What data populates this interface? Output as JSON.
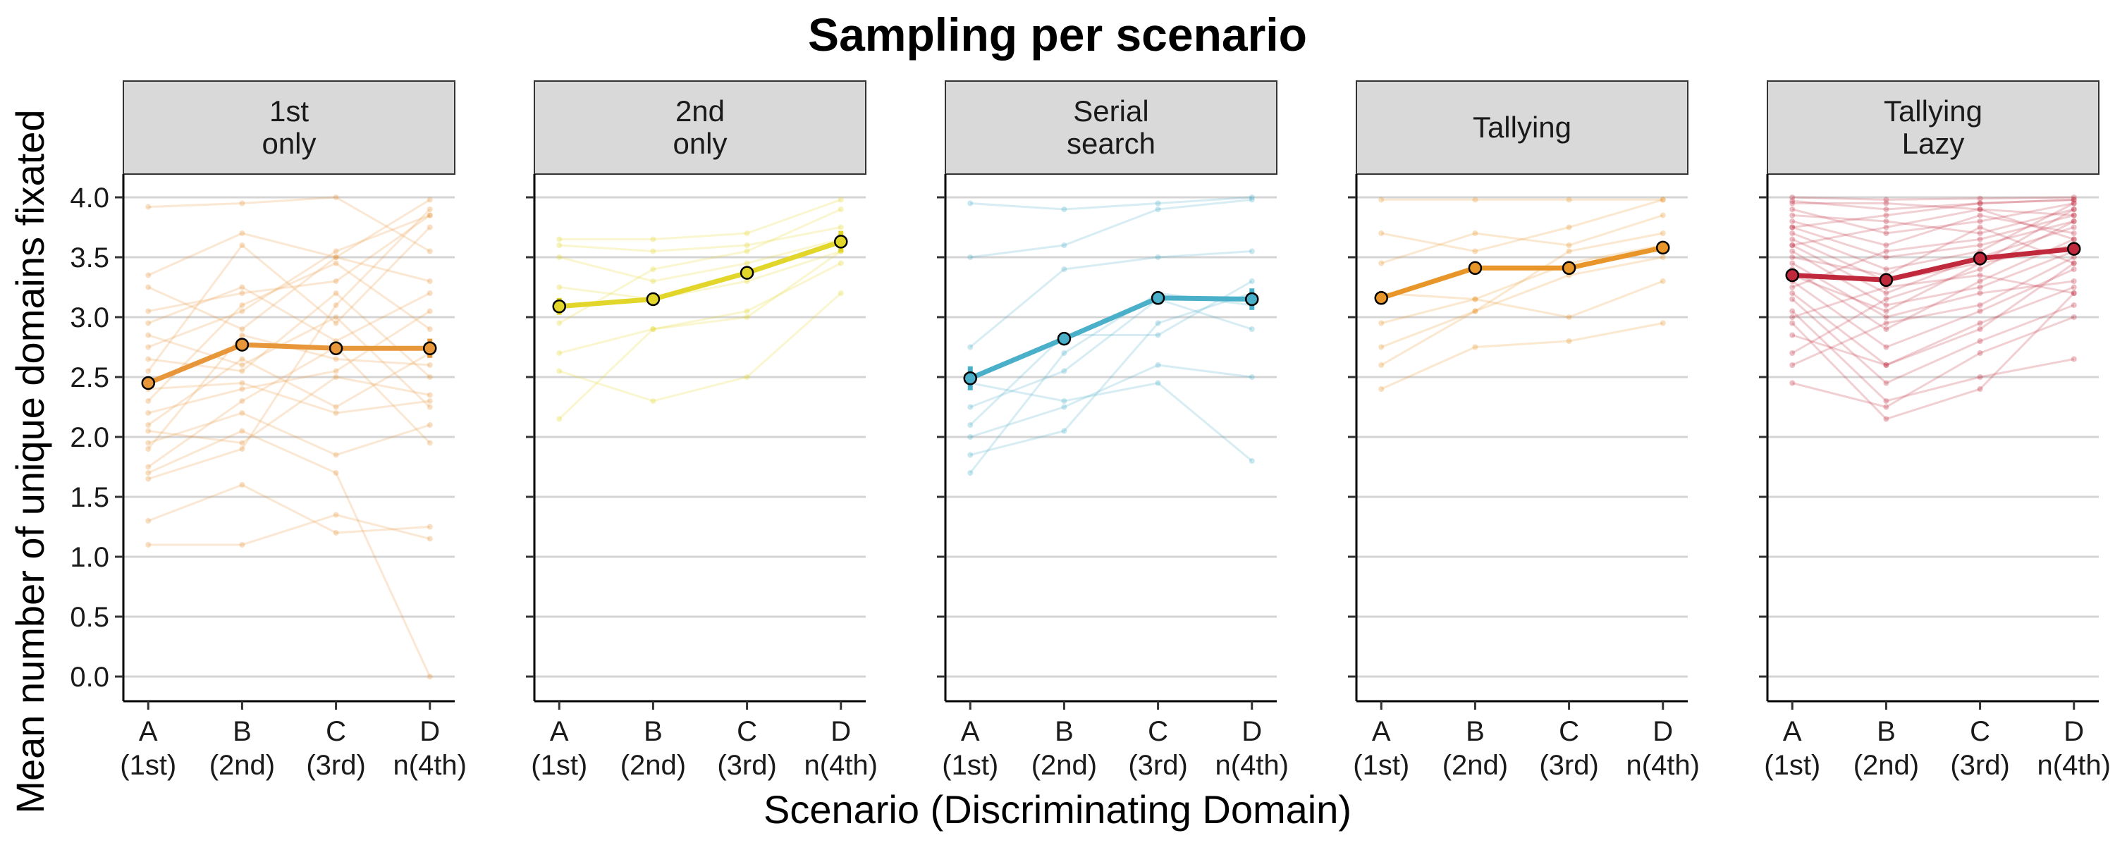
{
  "chart_data": {
    "type": "line",
    "title": "Sampling per scenario",
    "xlabel": "Scenario (Discriminating Domain)",
    "ylabel": "Mean number of unique domains fixated",
    "ylim": [
      0,
      4
    ],
    "y_ticks": [
      "0.0",
      "0.5",
      "1.0",
      "1.5",
      "2.0",
      "2.5",
      "3.0",
      "3.5",
      "4.0"
    ],
    "categories": [
      {
        "line1": "A",
        "line2": "(1st)"
      },
      {
        "line1": "B",
        "line2": "(2nd)"
      },
      {
        "line1": "C",
        "line2": "(3rd)"
      },
      {
        "line1": "D",
        "line2": "n(4th)"
      }
    ],
    "grid": "horizontal",
    "panels": [
      {
        "strip": [
          "1st",
          "only"
        ],
        "color": "#E8963A",
        "mean": [
          2.45,
          2.77,
          2.74,
          2.74
        ],
        "error": [
          0.04,
          0.03,
          0.03,
          0.08
        ],
        "individuals": [
          [
            3.92,
            3.95,
            4.0,
            3.55
          ],
          [
            3.35,
            3.7,
            3.5,
            3.98
          ],
          [
            3.05,
            3.2,
            3.3,
            3.85
          ],
          [
            2.95,
            3.25,
            2.8,
            3.2
          ],
          [
            2.75,
            3.05,
            3.55,
            3.85
          ],
          [
            2.65,
            2.55,
            3.2,
            2.5
          ],
          [
            2.55,
            3.6,
            2.95,
            3.75
          ],
          [
            2.4,
            2.45,
            2.2,
            2.3
          ],
          [
            2.3,
            3.1,
            3.45,
            2.9
          ],
          [
            2.2,
            2.4,
            2.55,
            3.05
          ],
          [
            2.1,
            2.65,
            2.25,
            2.7
          ],
          [
            2.05,
            1.95,
            2.5,
            2.35
          ],
          [
            1.95,
            2.2,
            1.85,
            2.1
          ],
          [
            1.9,
            2.85,
            2.65,
            2.6
          ],
          [
            1.75,
            2.3,
            2.75,
            1.95
          ],
          [
            1.7,
            2.05,
            1.7,
            0.0
          ],
          [
            1.65,
            1.9,
            3.1,
            3.9
          ],
          [
            1.3,
            1.6,
            1.2,
            1.25
          ],
          [
            1.1,
            1.1,
            1.35,
            1.15
          ],
          [
            3.25,
            2.9,
            3.5,
            3.3
          ],
          [
            2.85,
            2.6,
            3.0,
            2.25
          ]
        ]
      },
      {
        "strip": [
          "2nd",
          "only"
        ],
        "color": "#E2D62A",
        "mean": [
          3.09,
          3.15,
          3.37,
          3.63
        ],
        "error": [
          0.07,
          0.05,
          0.05,
          0.09
        ],
        "individuals": [
          [
            3.65,
            3.65,
            3.7,
            3.98
          ],
          [
            3.6,
            3.55,
            3.6,
            3.75
          ],
          [
            3.5,
            3.3,
            3.45,
            3.65
          ],
          [
            3.25,
            3.15,
            3.3,
            3.55
          ],
          [
            2.95,
            3.4,
            3.55,
            3.9
          ],
          [
            2.7,
            2.9,
            3.05,
            3.45
          ],
          [
            2.55,
            2.3,
            2.5,
            3.2
          ],
          [
            2.15,
            2.9,
            3.0,
            3.55
          ]
        ]
      },
      {
        "strip": [
          "Serial",
          "search"
        ],
        "color": "#4AAFC9",
        "mean": [
          2.49,
          2.82,
          3.16,
          3.15
        ],
        "error": [
          0.1,
          0.04,
          0.05,
          0.09
        ],
        "individuals": [
          [
            3.95,
            3.9,
            3.95,
            4.0
          ],
          [
            3.5,
            3.6,
            3.9,
            3.98
          ],
          [
            2.75,
            3.4,
            3.5,
            3.55
          ],
          [
            2.45,
            2.3,
            2.45,
            1.8
          ],
          [
            2.25,
            2.55,
            3.15,
            2.9
          ],
          [
            2.0,
            2.25,
            2.6,
            2.5
          ],
          [
            1.85,
            2.05,
            2.95,
            3.2
          ],
          [
            1.7,
            2.7,
            3.2,
            3.1
          ],
          [
            2.1,
            2.85,
            2.85,
            3.3
          ]
        ]
      },
      {
        "strip": [
          "Tallying"
        ],
        "color": "#E8962A",
        "mean": [
          3.16,
          3.41,
          3.41,
          3.58
        ],
        "error": [
          0.04,
          0.02,
          0.02,
          0.05
        ],
        "individuals": [
          [
            3.98,
            3.98,
            3.98,
            3.98
          ],
          [
            3.7,
            3.55,
            3.75,
            3.98
          ],
          [
            3.45,
            3.7,
            3.6,
            3.85
          ],
          [
            3.2,
            3.15,
            3.0,
            3.3
          ],
          [
            2.95,
            3.15,
            3.45,
            3.6
          ],
          [
            2.6,
            3.05,
            3.35,
            3.5
          ],
          [
            2.4,
            2.75,
            2.8,
            2.95
          ],
          [
            2.75,
            3.05,
            3.55,
            3.7
          ]
        ]
      },
      {
        "strip": [
          "Tallying",
          "Lazy"
        ],
        "color": "#C0283C",
        "mean": [
          3.35,
          3.31,
          3.49,
          3.57
        ],
        "error": [
          0.03,
          0.03,
          0.04,
          0.05
        ],
        "individuals": [
          [
            4.0,
            3.98,
            3.99,
            4.0
          ],
          [
            3.97,
            3.9,
            3.95,
            3.98
          ],
          [
            3.95,
            3.95,
            3.9,
            3.85
          ],
          [
            3.9,
            3.7,
            3.8,
            3.95
          ],
          [
            3.85,
            3.8,
            3.7,
            3.9
          ],
          [
            3.8,
            3.6,
            3.85,
            3.7
          ],
          [
            3.75,
            3.5,
            3.6,
            3.8
          ],
          [
            3.7,
            3.4,
            3.55,
            3.95
          ],
          [
            3.65,
            3.3,
            3.45,
            3.6
          ],
          [
            3.6,
            3.2,
            3.5,
            3.75
          ],
          [
            3.55,
            3.1,
            3.25,
            3.55
          ],
          [
            3.5,
            3.35,
            3.75,
            3.45
          ],
          [
            3.45,
            3.0,
            3.2,
            3.3
          ],
          [
            3.4,
            2.9,
            3.3,
            3.65
          ],
          [
            3.35,
            3.05,
            3.45,
            3.9
          ],
          [
            3.3,
            2.75,
            3.05,
            3.4
          ],
          [
            3.2,
            2.6,
            2.95,
            3.25
          ],
          [
            3.15,
            2.45,
            2.8,
            3.1
          ],
          [
            3.05,
            2.3,
            2.5,
            2.65
          ],
          [
            2.95,
            2.15,
            2.4,
            3.2
          ],
          [
            2.85,
            2.6,
            2.9,
            3.45
          ],
          [
            2.7,
            3.15,
            3.4,
            3.8
          ],
          [
            2.6,
            2.95,
            3.1,
            3.5
          ],
          [
            2.45,
            2.25,
            2.7,
            3.0
          ],
          [
            3.6,
            3.75,
            3.9,
            3.65
          ],
          [
            3.25,
            3.55,
            3.65,
            3.85
          ],
          [
            3.0,
            3.25,
            3.35,
            3.2
          ],
          [
            3.75,
            3.85,
            3.95,
            3.98
          ]
        ]
      }
    ]
  }
}
